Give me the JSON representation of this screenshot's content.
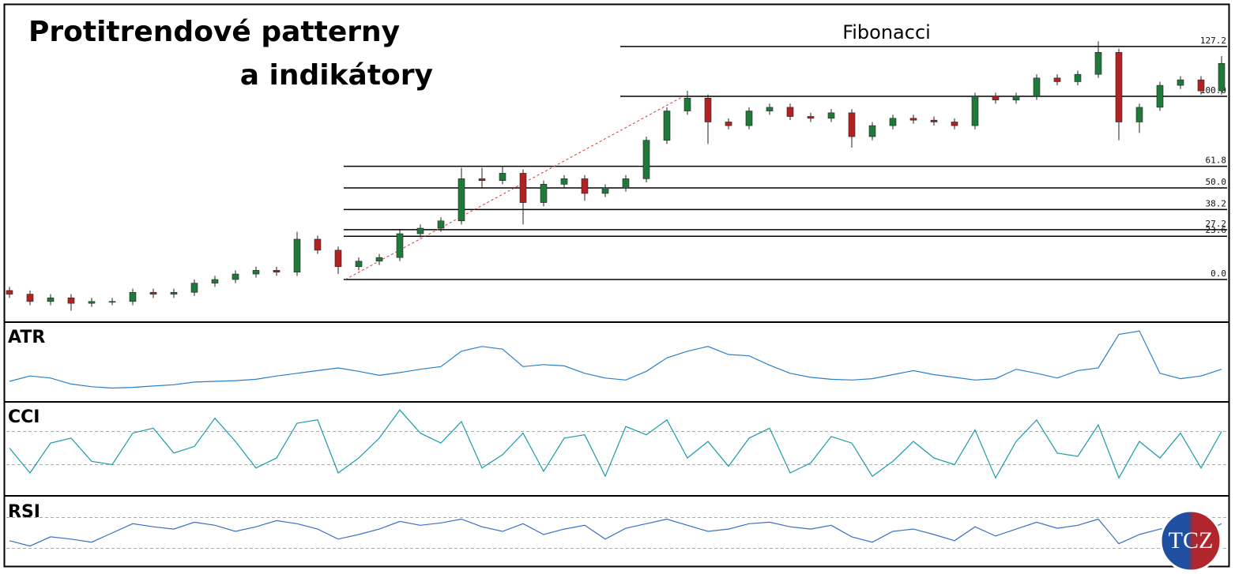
{
  "title": [
    "Protitrendové patterny",
    "a indikátory"
  ],
  "logo": "TCZ",
  "chart_data": [
    {
      "type": "candlestick",
      "title": "Fibonacci",
      "up_color": "#1f7a3a",
      "down_color": "#b22222",
      "ylim": [
        -20,
        135
      ],
      "fib_levels": [
        {
          "value": 0,
          "label": "0.0"
        },
        {
          "value": 23.6,
          "label": "23.6"
        },
        {
          "value": 27.2,
          "label": "27.2"
        },
        {
          "value": 38.2,
          "label": "38.2"
        },
        {
          "value": 50,
          "label": "50.0"
        },
        {
          "value": 61.8,
          "label": "61.8"
        },
        {
          "value": 100,
          "label": "100.0"
        },
        {
          "value": 127.2,
          "label": "127.2"
        }
      ],
      "open": [
        -6,
        -8,
        -12,
        -10,
        -13,
        -12,
        -12,
        -7,
        -8,
        -7,
        -2,
        0,
        3,
        5,
        4,
        22,
        16,
        7,
        10,
        12,
        25,
        28,
        32,
        55,
        54,
        58,
        42,
        52,
        55,
        47,
        50,
        55,
        76,
        92,
        99,
        86,
        84,
        92,
        94,
        89,
        88,
        91,
        78,
        84,
        88,
        87,
        86,
        84,
        100,
        98,
        100,
        110,
        108,
        112,
        124,
        86,
        94,
        106,
        109,
        103
      ],
      "high": [
        -4,
        -6,
        -8,
        -8,
        -10,
        -10,
        -5,
        -5,
        -5,
        0,
        2,
        5,
        7,
        7,
        26,
        24,
        18,
        12,
        14,
        27,
        30,
        34,
        61,
        61,
        62,
        60,
        54,
        57,
        57,
        52,
        57,
        78,
        94,
        103,
        101,
        88,
        94,
        96,
        96,
        91,
        93,
        93,
        86,
        90,
        90,
        89,
        88,
        102,
        102,
        102,
        112,
        112,
        114,
        130,
        126,
        96,
        108,
        111,
        111,
        122
      ],
      "low": [
        -10,
        -14,
        -14,
        -17,
        -15,
        -14,
        -14,
        -10,
        -10,
        -9,
        -4,
        -2,
        1,
        2,
        2,
        14,
        3,
        5,
        8,
        10,
        23,
        26,
        30,
        50,
        52,
        30,
        40,
        50,
        43,
        45,
        48,
        53,
        74,
        90,
        74,
        82,
        82,
        90,
        87,
        86,
        86,
        72,
        76,
        82,
        85,
        84,
        82,
        82,
        96,
        96,
        98,
        106,
        106,
        110,
        76,
        80,
        92,
        104,
        101,
        101
      ],
      "close": [
        -8,
        -12,
        -10,
        -13,
        -12,
        -12,
        -7,
        -8,
        -7,
        -2,
        0,
        3,
        5,
        4,
        22,
        16,
        7,
        10,
        12,
        25,
        28,
        32,
        55,
        54,
        58,
        42,
        52,
        55,
        47,
        50,
        55,
        76,
        92,
        99,
        86,
        84,
        92,
        94,
        89,
        88,
        91,
        78,
        84,
        88,
        87,
        86,
        84,
        100,
        98,
        100,
        110,
        108,
        112,
        124,
        86,
        94,
        106,
        109,
        103,
        118
      ]
    },
    {
      "type": "line",
      "title": "ATR",
      "color": "#2a7fc9",
      "ylim": [
        0,
        10
      ],
      "values": [
        2,
        2.8,
        2.5,
        1.6,
        1.2,
        1,
        1.1,
        1.3,
        1.5,
        1.9,
        2,
        2.1,
        2.3,
        2.8,
        3.2,
        3.6,
        4,
        3.5,
        2.9,
        3.3,
        3.8,
        4.2,
        6.5,
        7.2,
        6.8,
        4.2,
        4.5,
        4.3,
        3.2,
        2.5,
        2.2,
        3.5,
        5.5,
        6.5,
        7.2,
        6,
        5.8,
        4.4,
        3.2,
        2.6,
        2.3,
        2.2,
        2.4,
        3,
        3.6,
        3,
        2.6,
        2.2,
        2.4,
        3.8,
        3.2,
        2.5,
        3.6,
        4,
        9,
        9.5,
        3.2,
        2.4,
        2.8,
        3.8
      ]
    },
    {
      "type": "line",
      "title": "CCI",
      "color": "#1a9aa8",
      "ylim": [
        -250,
        250
      ],
      "levels": [
        100,
        -100
      ],
      "values": [
        0,
        -150,
        30,
        60,
        -80,
        -100,
        90,
        120,
        -30,
        10,
        180,
        40,
        -120,
        -60,
        150,
        170,
        -150,
        -60,
        60,
        230,
        90,
        30,
        160,
        -120,
        -40,
        90,
        -140,
        60,
        80,
        -170,
        130,
        80,
        170,
        -60,
        40,
        -110,
        60,
        120,
        -150,
        -90,
        70,
        30,
        -170,
        -80,
        40,
        -60,
        -100,
        110,
        -180,
        40,
        170,
        -30,
        -50,
        140,
        -180,
        40,
        -60,
        90,
        -120,
        100
      ]
    },
    {
      "type": "line",
      "title": "RSI",
      "color": "#3b6fc4",
      "ylim": [
        10,
        90
      ],
      "levels": [
        70,
        30
      ],
      "values": [
        40,
        33,
        45,
        42,
        38,
        50,
        62,
        58,
        55,
        64,
        60,
        52,
        58,
        66,
        62,
        55,
        42,
        48,
        55,
        65,
        60,
        63,
        68,
        58,
        52,
        62,
        48,
        55,
        60,
        42,
        56,
        62,
        68,
        60,
        52,
        55,
        62,
        64,
        58,
        55,
        60,
        45,
        38,
        52,
        55,
        48,
        40,
        58,
        46,
        55,
        64,
        56,
        60,
        68,
        36,
        48,
        55,
        60,
        50,
        62
      ]
    }
  ]
}
